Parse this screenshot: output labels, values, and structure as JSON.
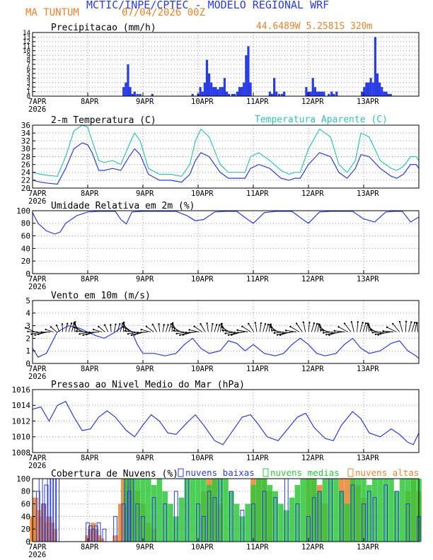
{
  "header": {
    "title": "MCTIC/INPE/CPTEC - MODELO REGIONAL WRF",
    "location": "MA TUNTUM",
    "date": "07/04/2026 00Z",
    "coords": "44.6489W 5.2581S 320m"
  },
  "colors": {
    "blue": "#2a3ce6",
    "cyan": "#33c2b6",
    "orange": "#e8832e",
    "green": "#2fc83b",
    "grid": "#9a9a9a"
  },
  "x_axis": {
    "ticks": [
      "7APR",
      "8APR",
      "9APR",
      "10APR",
      "11APR",
      "12APR",
      "13APR"
    ],
    "year": "2026",
    "days": 7
  },
  "chart_data": [
    {
      "id": "precip",
      "type": "bar",
      "title": "Precipitacao (mm/h)",
      "ylim": [
        0,
        14
      ],
      "yticks": [
        "0",
        "1",
        "2",
        "3",
        "4",
        "5",
        "6",
        "7",
        "8",
        "9",
        "10",
        "11",
        "12",
        "13",
        "14"
      ],
      "series": [
        {
          "name": "precip",
          "color": "#2a3ce6",
          "x": [
            1.65,
            1.69,
            1.73,
            1.77,
            1.81,
            1.85,
            1.9,
            1.95,
            2.17,
            2.9,
            3.0,
            3.04,
            3.08,
            3.12,
            3.16,
            3.2,
            3.24,
            3.28,
            3.32,
            3.36,
            3.4,
            3.44,
            3.48,
            3.52,
            3.56,
            3.62,
            3.66,
            3.71,
            3.75,
            3.79,
            3.83,
            3.87,
            3.91,
            3.95,
            4.3,
            4.34,
            4.38,
            4.42,
            4.47,
            4.52,
            4.56,
            4.96,
            5.0,
            5.04,
            5.08,
            5.12,
            5.16,
            5.2,
            5.24,
            5.28,
            5.37,
            5.42,
            5.46,
            5.51,
            5.97,
            6.01,
            6.05,
            6.09,
            6.13,
            6.17,
            6.21,
            6.25,
            6.29,
            6.33,
            6.37,
            6.41,
            6.45,
            6.49
          ],
          "values": [
            2,
            3,
            7,
            2,
            0.5,
            1,
            0.5,
            0.5,
            0.5,
            0.5,
            0.5,
            2,
            1,
            3,
            8,
            5,
            3,
            2,
            2,
            1.5,
            2,
            2,
            4,
            1,
            0.5,
            0.5,
            0.5,
            1,
            2,
            2,
            3,
            9,
            11,
            3,
            1,
            0.5,
            4,
            1,
            0.5,
            0.5,
            1,
            2,
            1,
            1,
            4,
            2,
            1,
            1,
            1,
            1,
            0.5,
            1,
            0.5,
            1,
            1,
            2,
            3,
            3,
            4,
            3,
            13,
            5,
            3,
            2,
            1,
            1,
            0.5,
            0.5
          ]
        }
      ]
    },
    {
      "id": "temp",
      "type": "line",
      "title": "2-m Temperatura (C)",
      "legend": "Temperatura Aparente (C)",
      "ylim": [
        20,
        36
      ],
      "yticks": [
        "20",
        "22",
        "24",
        "26",
        "28",
        "30",
        "32",
        "34",
        "36"
      ],
      "series": [
        {
          "name": "Temperatura Aparente (C)",
          "color": "#33c2b6",
          "x": [
            0,
            0.15,
            0.3,
            0.45,
            0.6,
            0.75,
            0.9,
            1.0,
            1.08,
            1.2,
            1.3,
            1.45,
            1.6,
            1.75,
            1.85,
            1.95,
            2.1,
            2.3,
            2.5,
            2.7,
            2.85,
            2.95,
            3.05,
            3.2,
            3.4,
            3.55,
            3.7,
            3.85,
            3.95,
            4.1,
            4.3,
            4.5,
            4.65,
            4.75,
            4.85,
            5.0,
            5.2,
            5.4,
            5.55,
            5.7,
            5.85,
            5.95,
            6.1,
            6.3,
            6.5,
            6.6,
            6.72,
            6.85,
            6.95,
            7.0
          ],
          "values": [
            24,
            23.5,
            23.2,
            23,
            28,
            34.5,
            36,
            35.5,
            32,
            27,
            26.5,
            27,
            26,
            31,
            34,
            32,
            25,
            23.5,
            23.5,
            23,
            26,
            32,
            35,
            33,
            26,
            24,
            24,
            24,
            28,
            29,
            27,
            24.5,
            23.5,
            24,
            24,
            30,
            35,
            33,
            26,
            24,
            27,
            34,
            33,
            27,
            25,
            24.5,
            25.5,
            28,
            28,
            27
          ]
        },
        {
          "name": "2-m Temperatura (C)",
          "color": "#2a3ce6",
          "x": [
            0,
            0.15,
            0.3,
            0.45,
            0.6,
            0.75,
            0.9,
            1.0,
            1.08,
            1.2,
            1.3,
            1.45,
            1.6,
            1.75,
            1.85,
            1.95,
            2.1,
            2.3,
            2.5,
            2.7,
            2.85,
            2.95,
            3.05,
            3.2,
            3.4,
            3.55,
            3.7,
            3.85,
            3.95,
            4.1,
            4.3,
            4.5,
            4.65,
            4.75,
            4.85,
            5.0,
            5.2,
            5.4,
            5.55,
            5.7,
            5.85,
            5.95,
            6.1,
            6.3,
            6.5,
            6.6,
            6.72,
            6.85,
            6.95,
            7.0
          ],
          "values": [
            22,
            21.5,
            21.2,
            21,
            25,
            30,
            31.5,
            31,
            29,
            24.5,
            24.5,
            25,
            24.5,
            28,
            30,
            28.5,
            23.5,
            22,
            22,
            21.5,
            23.5,
            27,
            29,
            28,
            24,
            22.5,
            22.5,
            22.5,
            25,
            26,
            25,
            22.5,
            22,
            22.5,
            22.5,
            26,
            29,
            28,
            24,
            22.5,
            25,
            28.5,
            28,
            25,
            23,
            22.5,
            23.5,
            26,
            26,
            25
          ]
        }
      ]
    },
    {
      "id": "rh",
      "type": "line",
      "title": "Umidade Relativa em 2m (%)",
      "ylim": [
        0,
        100
      ],
      "yticks": [
        "0",
        "20",
        "40",
        "60",
        "80",
        "100"
      ],
      "series": [
        {
          "name": "Umidade Relativa",
          "color": "#2a3ce6",
          "x": [
            0,
            0.1,
            0.25,
            0.4,
            0.5,
            0.6,
            0.8,
            1.0,
            1.2,
            1.35,
            1.5,
            1.6,
            1.7,
            1.8,
            2.0,
            2.2,
            2.4,
            2.6,
            2.8,
            2.95,
            3.1,
            3.3,
            3.5,
            3.7,
            3.9,
            4.0,
            4.2,
            4.4,
            4.55,
            4.7,
            4.9,
            5.0,
            5.2,
            5.4,
            5.6,
            5.8,
            6.0,
            6.2,
            6.4,
            6.55,
            6.7,
            6.85,
            7.0
          ],
          "values": [
            97,
            80,
            68,
            63,
            66,
            80,
            92,
            98,
            99,
            99,
            99,
            86,
            79,
            98,
            99,
            99,
            99,
            99,
            92,
            84,
            86,
            98,
            99,
            99,
            86,
            80,
            97,
            99,
            99,
            99,
            86,
            80,
            98,
            99,
            99,
            99,
            87,
            82,
            98,
            99,
            99,
            82,
            90
          ]
        }
      ]
    },
    {
      "id": "wind",
      "type": "line",
      "title": "Vento em 10m (m/s)",
      "ylim": [
        0,
        5
      ],
      "yticks": [
        "0",
        "1",
        "2",
        "3",
        "4",
        "5"
      ],
      "series": [
        {
          "name": "Vento em 10m",
          "color": "#2a3ce6",
          "x": [
            0,
            0.1,
            0.25,
            0.45,
            0.65,
            0.85,
            1.0,
            1.15,
            1.3,
            1.5,
            1.65,
            1.8,
            1.9,
            2.0,
            2.2,
            2.4,
            2.6,
            2.75,
            2.9,
            3.05,
            3.2,
            3.4,
            3.55,
            3.7,
            3.85,
            4.0,
            4.2,
            4.4,
            4.55,
            4.7,
            4.85,
            5.0,
            5.15,
            5.3,
            5.5,
            5.65,
            5.8,
            5.95,
            6.1,
            6.3,
            6.5,
            6.65,
            6.8,
            6.95,
            7.0
          ],
          "values": [
            1.2,
            0.5,
            0.8,
            2.5,
            3.0,
            2.8,
            2.5,
            2.2,
            2.0,
            2.5,
            3.0,
            2.5,
            1.5,
            0.8,
            0.8,
            0.6,
            0.8,
            1.5,
            2.0,
            1.2,
            0.8,
            1.0,
            1.8,
            1.6,
            1.0,
            1.5,
            0.8,
            0.6,
            0.8,
            1.5,
            2.0,
            1.5,
            0.8,
            0.6,
            0.8,
            1.5,
            2.0,
            1.2,
            0.8,
            1.0,
            1.6,
            1.8,
            1.0,
            0.6,
            0.4
          ]
        }
      ]
    },
    {
      "id": "pres",
      "type": "line",
      "title": "Pressao ao Nivel Medio do Mar (hPa)",
      "ylim": [
        1008,
        1016
      ],
      "yticks": [
        "1008",
        "1010",
        "1012",
        "1014",
        "1016"
      ],
      "series": [
        {
          "name": "Pressao",
          "color": "#2a3ce6",
          "x": [
            0,
            0.15,
            0.3,
            0.45,
            0.6,
            0.75,
            0.9,
            1.05,
            1.2,
            1.35,
            1.5,
            1.7,
            1.85,
            2.0,
            2.15,
            2.3,
            2.45,
            2.6,
            2.8,
            2.95,
            3.1,
            3.3,
            3.45,
            3.6,
            3.8,
            3.95,
            4.1,
            4.25,
            4.45,
            4.6,
            4.8,
            4.95,
            5.1,
            5.3,
            5.45,
            5.6,
            5.8,
            5.95,
            6.1,
            6.3,
            6.5,
            6.65,
            6.8,
            6.9,
            7.0
          ],
          "values": [
            1013.5,
            1013.8,
            1012.0,
            1014.0,
            1014.5,
            1012.5,
            1010.8,
            1011.0,
            1012.5,
            1013.3,
            1012.5,
            1010.8,
            1010.0,
            1011.5,
            1012.8,
            1012.0,
            1010.5,
            1010.3,
            1011.8,
            1012.8,
            1011.5,
            1009.5,
            1009.0,
            1010.5,
            1012.5,
            1012.8,
            1011.5,
            1010.0,
            1009.5,
            1010.8,
            1012.5,
            1013.0,
            1011.2,
            1009.8,
            1009.5,
            1011.5,
            1013.2,
            1012.3,
            1010.5,
            1010.0,
            1011.0,
            1010.3,
            1009.3,
            1009.0,
            1010.5
          ]
        }
      ]
    },
    {
      "id": "cloud",
      "type": "bar",
      "title": "Cobertura de Nuvens (%)",
      "legend": [
        "nuvens baixas",
        "nuvens medias",
        "nuvens altas"
      ],
      "ylim": [
        0,
        100
      ],
      "yticks": [
        "0",
        "20",
        "40",
        "60",
        "80",
        "100"
      ],
      "series": [
        {
          "name": "nuvens baixas",
          "color": "#2a3ce6",
          "style": "outline",
          "x": [
            0.1,
            0.15,
            0.2,
            0.25,
            0.3,
            0.35,
            0.4,
            0.45,
            1.0,
            1.05,
            1.1,
            1.15,
            1.2,
            1.3,
            1.5,
            1.65,
            1.7,
            1.75,
            1.8,
            1.9,
            2.0,
            2.2,
            2.4,
            2.6,
            2.8,
            3.0,
            3.1,
            3.2,
            3.3,
            3.4,
            3.6,
            3.8,
            4.0,
            4.2,
            4.4,
            4.6,
            4.8,
            5.0,
            5.1,
            5.2,
            5.4,
            5.6,
            5.8,
            6.0,
            6.1,
            6.2,
            6.4,
            6.6,
            6.8,
            7.0
          ],
          "values": [
            80,
            100,
            60,
            90,
            100,
            100,
            100,
            100,
            30,
            25,
            20,
            25,
            30,
            20,
            40,
            60,
            100,
            80,
            100,
            60,
            40,
            70,
            60,
            80,
            100,
            60,
            40,
            80,
            70,
            100,
            80,
            50,
            60,
            80,
            70,
            100,
            60,
            40,
            70,
            80,
            100,
            80,
            90,
            60,
            80,
            70,
            90,
            80,
            60,
            40
          ]
        },
        {
          "name": "nuvens medias",
          "color": "#2fc83b",
          "style": "filled",
          "x": [
            1.7,
            1.8,
            1.9,
            2.0,
            2.1,
            2.2,
            2.3,
            2.4,
            2.5,
            2.6,
            2.7,
            2.8,
            2.9,
            3.0,
            3.1,
            3.2,
            3.3,
            3.4,
            3.5,
            3.6,
            3.7,
            3.8,
            3.9,
            4.0,
            4.1,
            4.2,
            4.3,
            4.4,
            4.5,
            4.6,
            4.7,
            4.8,
            4.9,
            5.0,
            5.1,
            5.2,
            5.3,
            5.4,
            5.5,
            5.6,
            5.7,
            5.8,
            5.9,
            6.0,
            6.1,
            6.2,
            6.3,
            6.4,
            6.5,
            6.6,
            6.7,
            6.8,
            6.9,
            7.0
          ],
          "values": [
            100,
            100,
            100,
            100,
            100,
            90,
            100,
            80,
            60,
            40,
            70,
            100,
            100,
            100,
            100,
            90,
            100,
            100,
            100,
            80,
            60,
            40,
            60,
            90,
            100,
            100,
            90,
            80,
            60,
            50,
            70,
            90,
            100,
            100,
            100,
            80,
            100,
            100,
            100,
            80,
            60,
            100,
            100,
            100,
            90,
            100,
            100,
            100,
            100,
            80,
            100,
            100,
            100,
            100
          ]
        },
        {
          "name": "nuvens altas",
          "color": "#e8832e",
          "style": "filled",
          "x": [
            0.0,
            0.05,
            0.1,
            0.15,
            0.2,
            0.25,
            0.3,
            0.35,
            0.4,
            0.9,
            1.0,
            1.05,
            1.1,
            1.15,
            1.2,
            1.25,
            1.5,
            1.6,
            1.65,
            1.7,
            1.75,
            1.8,
            1.9,
            2.0,
            2.1,
            2.2,
            3.1,
            3.2,
            3.3,
            3.4,
            4.0,
            4.1,
            4.2,
            4.3,
            5.0,
            5.1,
            5.2,
            5.3,
            5.6,
            5.7,
            5.8,
            5.9,
            6.0,
            6.8,
            6.9,
            7.0
          ],
          "values": [
            40,
            70,
            50,
            40,
            60,
            30,
            40,
            30,
            20,
            0,
            10,
            20,
            30,
            20,
            10,
            5,
            10,
            60,
            100,
            100,
            90,
            100,
            80,
            60,
            30,
            20,
            80,
            100,
            100,
            60,
            100,
            100,
            100,
            80,
            100,
            100,
            90,
            60,
            100,
            100,
            100,
            90,
            70,
            80,
            100,
            80
          ]
        }
      ]
    }
  ]
}
